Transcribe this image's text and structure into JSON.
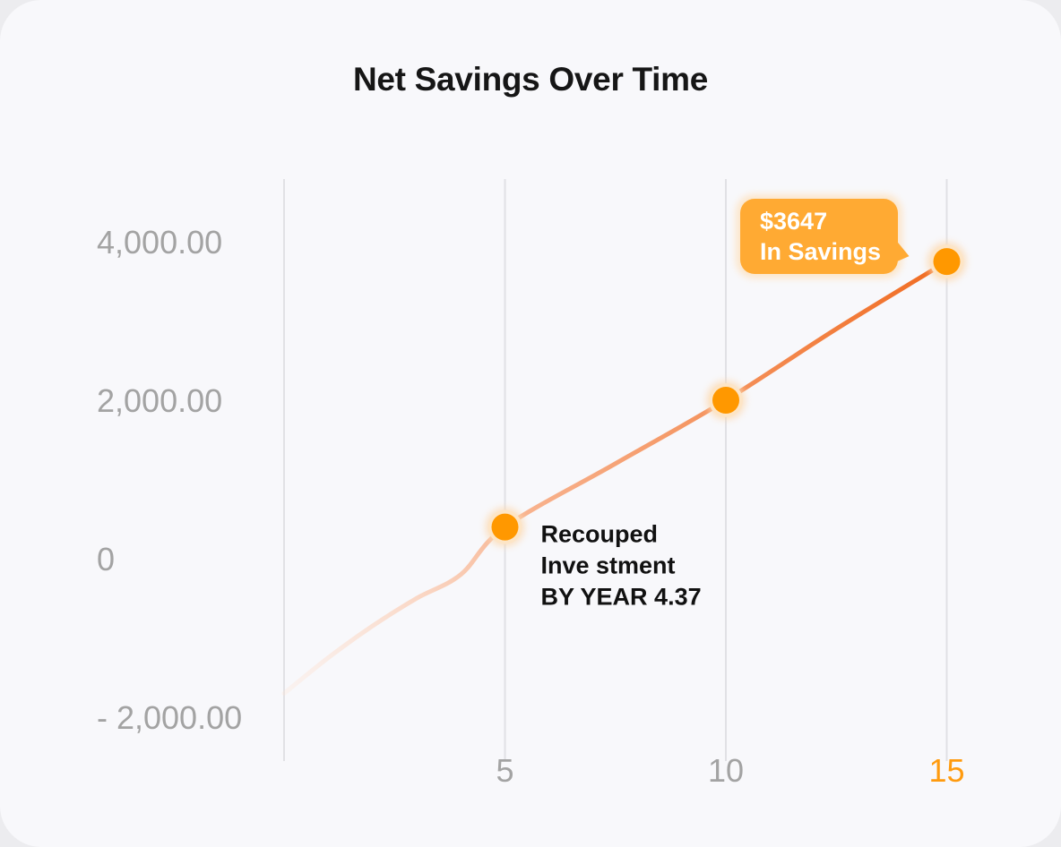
{
  "chart_data": {
    "type": "line",
    "title": "Net Savings Over Time",
    "xlabel": "",
    "ylabel": "",
    "x_ticks": [
      {
        "value": 5,
        "label": "5",
        "highlight": false
      },
      {
        "value": 10,
        "label": "10",
        "highlight": false
      },
      {
        "value": 15,
        "label": "15",
        "highlight": true
      }
    ],
    "y_ticks": [
      {
        "value": 4000,
        "label": "4,000.00"
      },
      {
        "value": 2000,
        "label": "2,000.00"
      },
      {
        "value": 0,
        "label": "0"
      },
      {
        "value": -2000,
        "label": "- 2,000.00"
      }
    ],
    "xlim": [
      0,
      15
    ],
    "ylim": [
      -2000,
      4000
    ],
    "grid": "vertical",
    "series": [
      {
        "values": [
          {
            "x": 0,
            "y": -1700
          },
          {
            "x": 1,
            "y": -1250
          },
          {
            "x": 2,
            "y": -850
          },
          {
            "x": 3,
            "y": -500
          },
          {
            "x": 4,
            "y": -200
          },
          {
            "x": 5,
            "y": 400
          },
          {
            "x": 7.5,
            "y": 1200
          },
          {
            "x": 10,
            "y": 2000
          },
          {
            "x": 12.5,
            "y": 2900
          },
          {
            "x": 15,
            "y": 3750
          }
        ],
        "color_start": "#fde3d3",
        "color_end": "#f06a1f"
      }
    ],
    "markers": [
      {
        "x": 5,
        "y": 400
      },
      {
        "x": 10,
        "y": 2000
      },
      {
        "x": 15,
        "y": 3750
      }
    ],
    "marker_color": "#ff9800",
    "annotations": {
      "recouped": {
        "lines": [
          "Recouped",
          "Inve stment",
          "BY YEAR 4.37"
        ]
      },
      "savings": {
        "lines": [
          "$3647",
          "In Savings"
        ],
        "color": "#ffaa33"
      }
    }
  }
}
